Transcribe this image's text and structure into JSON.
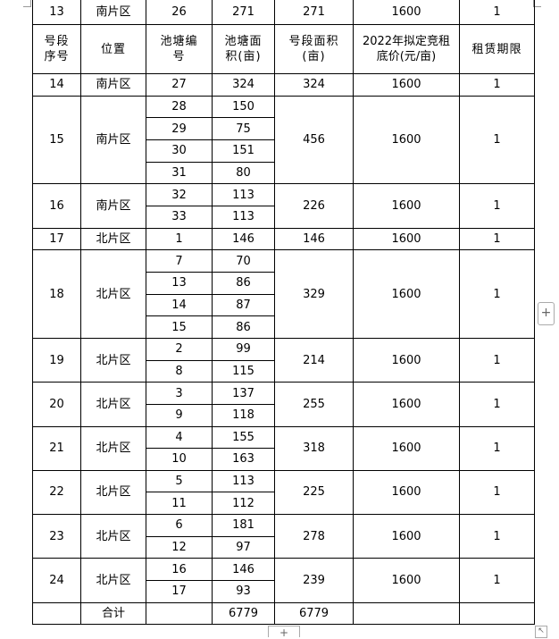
{
  "header": {
    "segment_no": "号段序号",
    "location": "位置",
    "pond_no": "池塘编号",
    "pond_area": "池塘面积(亩)",
    "segment_area": "号段面积(亩)",
    "price": "2022年拟定竞租底价(元/亩)",
    "term": "租赁期限"
  },
  "first_row": {
    "no": "13",
    "loc": "南片区",
    "pond": "26",
    "area": "271",
    "seg_area": "271",
    "price": "1600",
    "term": "1"
  },
  "rows": [
    {
      "no": "14",
      "loc": "南片区",
      "ponds": [
        [
          "27",
          "324"
        ]
      ],
      "seg_area": "324",
      "price": "1600",
      "term": "1"
    },
    {
      "no": "15",
      "loc": "南片区",
      "ponds": [
        [
          "28",
          "150"
        ],
        [
          "29",
          "75"
        ],
        [
          "30",
          "151"
        ],
        [
          "31",
          "80"
        ]
      ],
      "seg_area": "456",
      "price": "1600",
      "term": "1"
    },
    {
      "no": "16",
      "loc": "南片区",
      "ponds": [
        [
          "32",
          "113"
        ],
        [
          "33",
          "113"
        ]
      ],
      "seg_area": "226",
      "price": "1600",
      "term": "1"
    },
    {
      "no": "17",
      "loc": "北片区",
      "ponds": [
        [
          "1",
          "146"
        ]
      ],
      "seg_area": "146",
      "price": "1600",
      "term": "1"
    },
    {
      "no": "18",
      "loc": "北片区",
      "ponds": [
        [
          "7",
          "70"
        ],
        [
          "13",
          "86"
        ],
        [
          "14",
          "87"
        ],
        [
          "15",
          "86"
        ]
      ],
      "seg_area": "329",
      "price": "1600",
      "term": "1"
    },
    {
      "no": "19",
      "loc": "北片区",
      "ponds": [
        [
          "2",
          "99"
        ],
        [
          "8",
          "115"
        ]
      ],
      "seg_area": "214",
      "price": "1600",
      "term": "1"
    },
    {
      "no": "20",
      "loc": "北片区",
      "ponds": [
        [
          "3",
          "137"
        ],
        [
          "9",
          "118"
        ]
      ],
      "seg_area": "255",
      "price": "1600",
      "term": "1"
    },
    {
      "no": "21",
      "loc": "北片区",
      "ponds": [
        [
          "4",
          "155"
        ],
        [
          "10",
          "163"
        ]
      ],
      "seg_area": "318",
      "price": "1600",
      "term": "1"
    },
    {
      "no": "22",
      "loc": "北片区",
      "ponds": [
        [
          "5",
          "113"
        ],
        [
          "11",
          "112"
        ]
      ],
      "seg_area": "225",
      "price": "1600",
      "term": "1"
    },
    {
      "no": "23",
      "loc": "北片区",
      "ponds": [
        [
          "6",
          "181"
        ],
        [
          "12",
          "97"
        ]
      ],
      "seg_area": "278",
      "price": "1600",
      "term": "1"
    },
    {
      "no": "24",
      "loc": "北片区",
      "ponds": [
        [
          "16",
          "146"
        ],
        [
          "17",
          "93"
        ]
      ],
      "seg_area": "239",
      "price": "1600",
      "term": "1"
    }
  ],
  "total": {
    "label": "合计",
    "pond_area": "6779",
    "segment_area": "6779"
  },
  "controls": {
    "add_row": "+",
    "add_column": "+",
    "resize": "↖"
  }
}
